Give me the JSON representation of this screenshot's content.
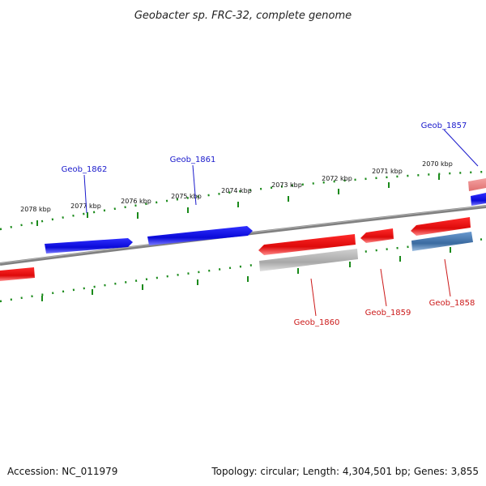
{
  "title": "Geobacter sp. FRC-32, complete genome",
  "footer": {
    "accession": "Accession: NC_011979",
    "summary": "Topology: circular; Length: 4,304,501 bp; Genes: 3,855"
  },
  "ticks": [
    "2078 kbp",
    "2077 kbp",
    "2076 kbp",
    "2075 kbp",
    "2074 kbp",
    "2073 kbp",
    "2072 kbp",
    "2071 kbp",
    "2070 kbp"
  ],
  "genes_top": [
    "Geob_1862",
    "Geob_1861",
    "Geob_1857"
  ],
  "genes_bottom": [
    "Geob_1860",
    "Geob_1859",
    "Geob_1858"
  ],
  "colors": {
    "forward_strand": "#1010e0",
    "reverse_strand": "#e01010",
    "pseudogene": "#b8b8b8",
    "rna_gene": "#4a7ab0",
    "backbone": "#808080",
    "tick": "#1a8a1a"
  }
}
